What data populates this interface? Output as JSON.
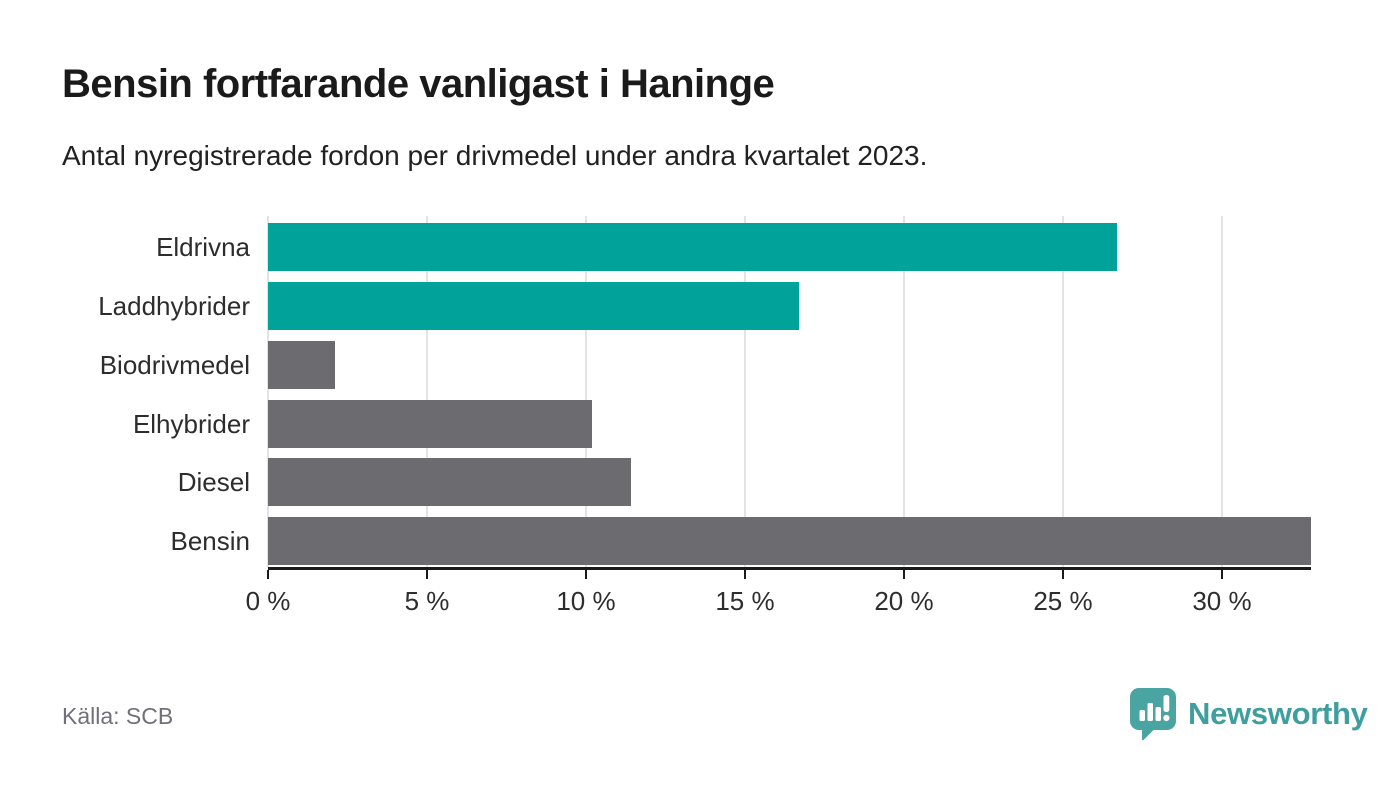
{
  "header": {
    "title": "Bensin fortfarande vanligast i Haninge",
    "subtitle": "Antal nyregistrerade fordon per drivmedel under andra kvartalet 2023."
  },
  "chart_data": {
    "type": "bar",
    "orientation": "horizontal",
    "title": "Bensin fortfarande vanligast i Haninge",
    "subtitle": "Antal nyregistrerade fordon per drivmedel under andra kvartalet 2023.",
    "categories": [
      "Eldrivna",
      "Laddhybrider",
      "Biodrivmedel",
      "Elhybrider",
      "Diesel",
      "Bensin"
    ],
    "values": [
      26.7,
      16.7,
      2.1,
      10.2,
      11.4,
      32.8
    ],
    "unit": "%",
    "bar_colors": [
      "#00a29a",
      "#00a29a",
      "#6b6b70",
      "#6b6b70",
      "#6b6b70",
      "#6b6b70"
    ],
    "highlight_color": "#00a29a",
    "base_color": "#6b6b70",
    "xlim": [
      0,
      32.8
    ],
    "x_ticks": [
      0,
      5,
      10,
      15,
      20,
      25,
      30
    ],
    "x_tick_labels": [
      "0 %",
      "5 %",
      "10 %",
      "15 %",
      "20 %",
      "25 %",
      "30 %"
    ],
    "grid": true,
    "legend": false,
    "gridline_color": "#e3e3e3",
    "axis_color": "#1a1a1a"
  },
  "footer": {
    "source": "Källa: SCB",
    "brand": "Newsworthy",
    "brand_color": "#3f9e9e",
    "brand_icon": "newsworthy-logo-icon",
    "brand_icon_color": "#4aa4a1"
  }
}
